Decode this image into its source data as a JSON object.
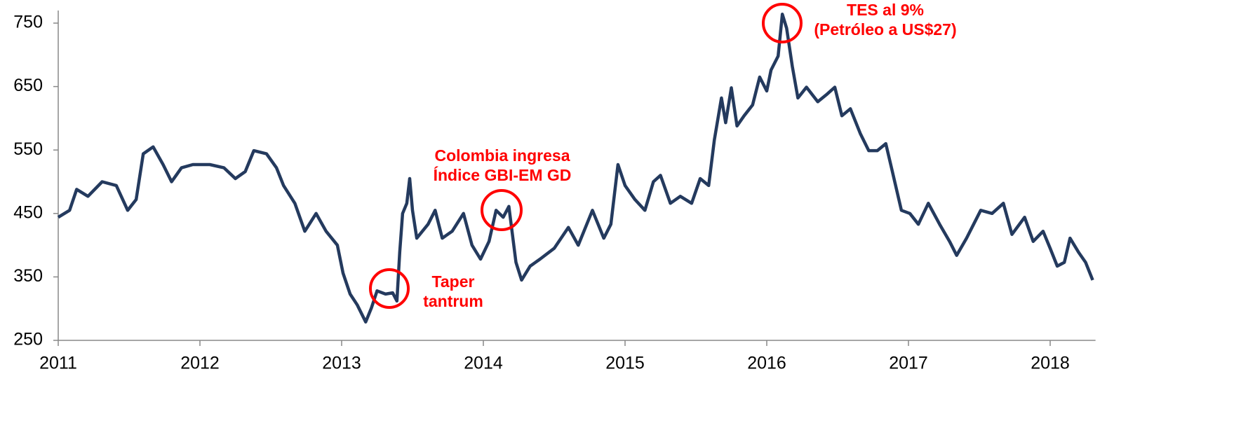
{
  "chart_data": {
    "type": "line",
    "x": [
      2011.0,
      2011.08,
      2011.13,
      2011.21,
      2011.31,
      2011.41,
      2011.49,
      2011.55,
      2011.6,
      2011.67,
      2011.74,
      2011.8,
      2011.87,
      2011.95,
      2012.07,
      2012.17,
      2012.25,
      2012.32,
      2012.38,
      2012.47,
      2012.54,
      2012.59,
      2012.67,
      2012.74,
      2012.82,
      2012.89,
      2012.97,
      2013.01,
      2013.06,
      2013.11,
      2013.17,
      2013.21,
      2013.25,
      2013.31,
      2013.36,
      2013.39,
      2013.41,
      2013.43,
      2013.46,
      2013.48,
      2013.5,
      2013.53,
      2013.61,
      2013.66,
      2013.71,
      2013.78,
      2013.86,
      2013.92,
      2013.98,
      2014.04,
      2014.09,
      2014.14,
      2014.18,
      2014.23,
      2014.27,
      2014.33,
      2014.4,
      2014.5,
      2014.6,
      2014.67,
      2014.77,
      2014.85,
      2014.9,
      2014.95,
      2015.0,
      2015.07,
      2015.14,
      2015.2,
      2015.25,
      2015.32,
      2015.39,
      2015.47,
      2015.53,
      2015.59,
      2015.63,
      2015.68,
      2015.71,
      2015.75,
      2015.79,
      2015.84,
      2015.9,
      2015.95,
      2016.0,
      2016.03,
      2016.08,
      2016.11,
      2016.14,
      2016.18,
      2016.22,
      2016.28,
      2016.36,
      2016.42,
      2016.48,
      2016.53,
      2016.59,
      2016.66,
      2016.72,
      2016.78,
      2016.84,
      2016.88,
      2016.95,
      2017.01,
      2017.07,
      2017.14,
      2017.22,
      2017.29,
      2017.34,
      2017.41,
      2017.46,
      2017.51,
      2017.59,
      2017.67,
      2017.73,
      2017.82,
      2017.88,
      2017.95,
      2018.0,
      2018.05,
      2018.1,
      2018.14,
      2018.2,
      2018.25,
      2018.3
    ],
    "series": [
      {
        "color": "#243a5e",
        "values": [
          444,
          455,
          488,
          477,
          500,
          494,
          455,
          472,
          544,
          555,
          527,
          500,
          522,
          527,
          527,
          522,
          505,
          516,
          549,
          544,
          522,
          494,
          466,
          422,
          450,
          422,
          400,
          356,
          323,
          306,
          279,
          301,
          328,
          323,
          325,
          312,
          389,
          450,
          466,
          505,
          455,
          411,
          433,
          455,
          411,
          422,
          450,
          400,
          378,
          406,
          455,
          444,
          461,
          373,
          345,
          367,
          378,
          395,
          428,
          400,
          455,
          411,
          433,
          527,
          494,
          472,
          455,
          500,
          510,
          466,
          477,
          466,
          505,
          494,
          566,
          632,
          593,
          648,
          588,
          604,
          621,
          665,
          643,
          676,
          698,
          764,
          742,
          682,
          632,
          649,
          626,
          637,
          649,
          604,
          615,
          576,
          549,
          549,
          560,
          522,
          455,
          450,
          433,
          466,
          433,
          406,
          384,
          411,
          433,
          455,
          450,
          466,
          417,
          444,
          406,
          422,
          395,
          367,
          373,
          411,
          389,
          373,
          345
        ]
      }
    ],
    "xlim": [
      2011,
      2018.32
    ],
    "xticks": [
      2011,
      2012,
      2013,
      2014,
      2015,
      2016,
      2017,
      2018
    ],
    "ylim": [
      250,
      770
    ],
    "yticks": [
      250,
      350,
      450,
      550,
      650,
      750
    ],
    "annotations": [
      {
        "lines": [
          "Taper",
          "tantrum"
        ]
      },
      {
        "lines": [
          "Colombia ingresa",
          "Índice GBI-EM GD"
        ]
      },
      {
        "lines": [
          "TES al 9%",
          "(Petróleo a US$27)"
        ]
      }
    ],
    "annotation_color": "#ff0000"
  }
}
